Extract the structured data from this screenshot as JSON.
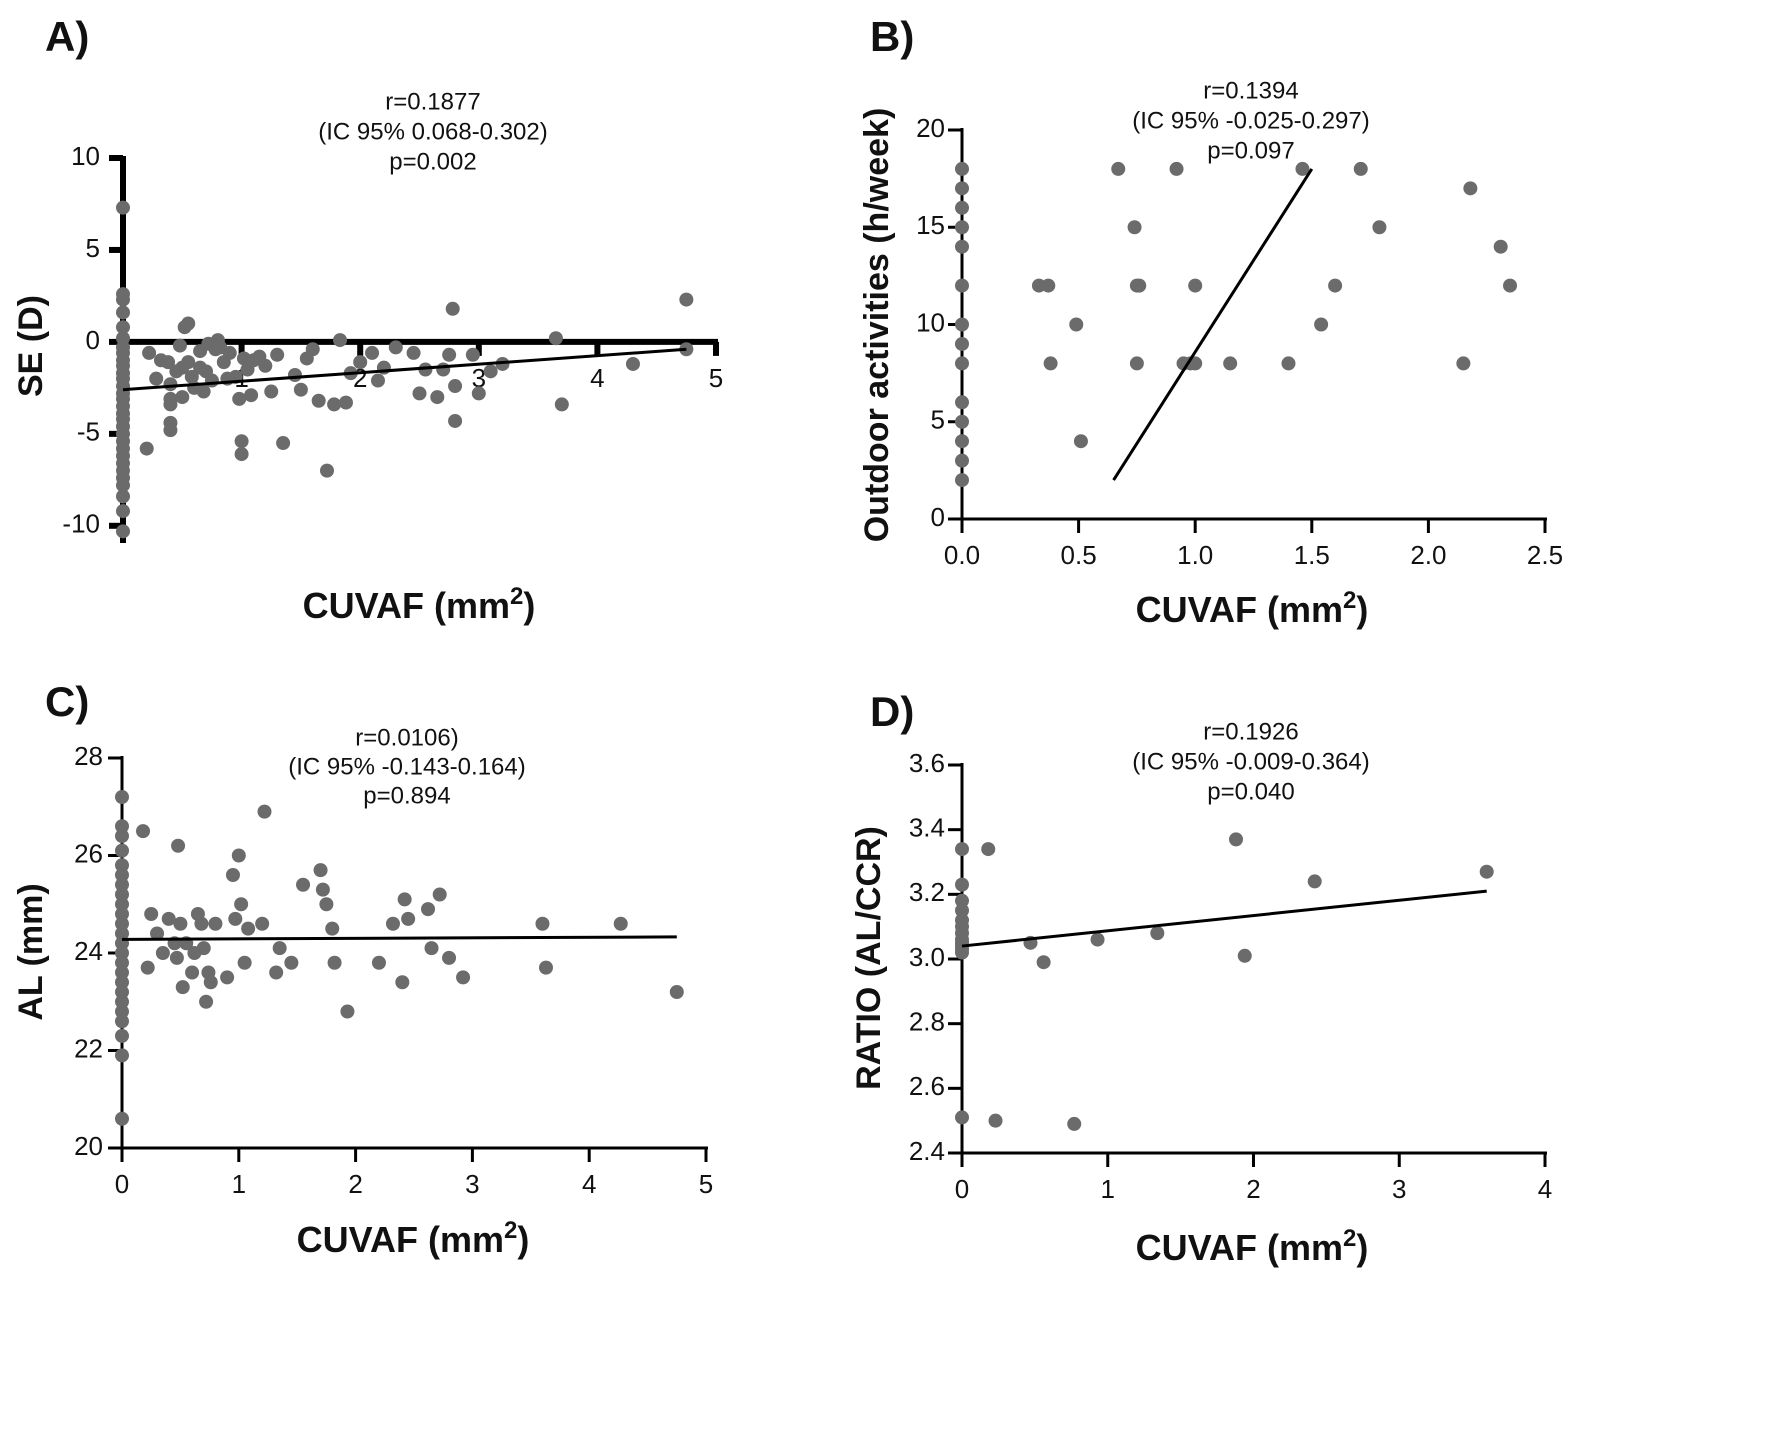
{
  "chart_data": [
    {
      "type": "scatter",
      "panel": "A)",
      "xlabel": "CUVAF (mm",
      "xlabel_sup": "2",
      "xlabel_end": ")",
      "ylabel": "SE (D)",
      "xlim": [
        0,
        5
      ],
      "ylim": [
        -10.5,
        10
      ],
      "x_ticks": [
        1,
        2,
        3,
        4,
        5
      ],
      "x_tick_labels": [
        "1",
        "2",
        "3",
        "4",
        "5"
      ],
      "y_ticks": [
        10,
        5,
        0,
        -5,
        -10
      ],
      "y_tick_labels": [
        "10",
        "5",
        "0",
        "-5",
        "-10"
      ],
      "x_axis_at": 0,
      "annotation": [
        "r=0.1877",
        "(IC 95% 0.068-0.302)",
        "p=0.002"
      ],
      "regression": {
        "x": [
          0,
          4.75
        ],
        "y": [
          -2.6,
          -0.4
        ]
      },
      "points": [
        [
          0,
          7.3
        ],
        [
          0,
          2.6
        ],
        [
          0,
          2.3
        ],
        [
          0,
          1.6
        ],
        [
          0,
          0.8
        ],
        [
          0,
          0.2
        ],
        [
          0,
          -0.3
        ],
        [
          0,
          -0.6
        ],
        [
          0,
          -1.0
        ],
        [
          0,
          -1.3
        ],
        [
          0,
          -1.7
        ],
        [
          0,
          -2.0
        ],
        [
          0,
          -2.4
        ],
        [
          0,
          -2.8
        ],
        [
          0,
          -3.1
        ],
        [
          0,
          -3.5
        ],
        [
          0,
          -3.9
        ],
        [
          0,
          -4.2
        ],
        [
          0,
          -4.6
        ],
        [
          0,
          -5.0
        ],
        [
          0,
          -5.4
        ],
        [
          0,
          -5.8
        ],
        [
          0,
          -6.2
        ],
        [
          0,
          -6.6
        ],
        [
          0,
          -7.0
        ],
        [
          0,
          -7.4
        ],
        [
          0,
          -7.8
        ],
        [
          0,
          -8.4
        ],
        [
          0,
          -9.2
        ],
        [
          0,
          -10.3
        ],
        [
          0.2,
          -5.8
        ],
        [
          0.22,
          -0.6
        ],
        [
          0.28,
          -2.0
        ],
        [
          0.32,
          -1.0
        ],
        [
          0.38,
          -1.1
        ],
        [
          0.4,
          -2.3
        ],
        [
          0.4,
          -3.1
        ],
        [
          0.4,
          -3.4
        ],
        [
          0.4,
          -4.4
        ],
        [
          0.4,
          -4.8
        ],
        [
          0.45,
          -1.6
        ],
        [
          0.48,
          -0.2
        ],
        [
          0.5,
          -1.4
        ],
        [
          0.5,
          -3.0
        ],
        [
          0.52,
          0.8
        ],
        [
          0.55,
          1.0
        ],
        [
          0.55,
          -1.1
        ],
        [
          0.58,
          -1.9
        ],
        [
          0.6,
          -2.5
        ],
        [
          0.65,
          -0.5
        ],
        [
          0.65,
          -1.4
        ],
        [
          0.68,
          -2.7
        ],
        [
          0.7,
          -1.6
        ],
        [
          0.72,
          -0.1
        ],
        [
          0.75,
          -2.1
        ],
        [
          0.78,
          -0.4
        ],
        [
          0.8,
          0.1
        ],
        [
          0.82,
          -0.3
        ],
        [
          0.85,
          -1.1
        ],
        [
          0.88,
          -2.0
        ],
        [
          0.9,
          -0.6
        ],
        [
          0.95,
          -1.9
        ],
        [
          0.98,
          -3.1
        ],
        [
          1.0,
          -5.4
        ],
        [
          1.0,
          -6.1
        ],
        [
          1.02,
          -0.9
        ],
        [
          1.05,
          -1.5
        ],
        [
          1.08,
          -2.9
        ],
        [
          1.1,
          -1.0
        ],
        [
          1.15,
          -0.8
        ],
        [
          1.2,
          -1.3
        ],
        [
          1.25,
          -2.7
        ],
        [
          1.3,
          -0.7
        ],
        [
          1.35,
          -5.5
        ],
        [
          1.45,
          -1.8
        ],
        [
          1.5,
          -2.6
        ],
        [
          1.55,
          -0.9
        ],
        [
          1.6,
          -0.4
        ],
        [
          1.65,
          -3.2
        ],
        [
          1.72,
          -7.0
        ],
        [
          1.78,
          -3.4
        ],
        [
          1.83,
          0.1
        ],
        [
          1.88,
          -3.3
        ],
        [
          1.92,
          -1.7
        ],
        [
          2.0,
          -1.1
        ],
        [
          2.1,
          -0.6
        ],
        [
          2.15,
          -2.1
        ],
        [
          2.2,
          -1.4
        ],
        [
          2.3,
          -0.3
        ],
        [
          2.45,
          -0.6
        ],
        [
          2.5,
          -2.8
        ],
        [
          2.55,
          -1.5
        ],
        [
          2.65,
          -3.0
        ],
        [
          2.7,
          -1.5
        ],
        [
          2.75,
          -0.7
        ],
        [
          2.78,
          1.8
        ],
        [
          2.8,
          -2.4
        ],
        [
          2.95,
          -0.7
        ],
        [
          3.0,
          -2.8
        ],
        [
          3.1,
          -1.6
        ],
        [
          3.2,
          -1.2
        ],
        [
          3.65,
          0.2
        ],
        [
          3.7,
          -3.4
        ],
        [
          4.3,
          -1.2
        ],
        [
          4.75,
          2.3
        ],
        [
          4.75,
          -0.4
        ],
        [
          2.8,
          -4.3
        ]
      ]
    },
    {
      "type": "scatter",
      "panel": "B)",
      "xlabel": "CUVAF (mm",
      "xlabel_sup": "2",
      "xlabel_end": ")",
      "ylabel": "Outdoor activities (h/week)",
      "xlim": [
        0,
        2.5
      ],
      "ylim": [
        0,
        20
      ],
      "x_ticks": [
        0,
        0.5,
        1.0,
        1.5,
        2.0,
        2.5
      ],
      "x_tick_labels": [
        "0.0",
        "0.5",
        "1.0",
        "1.5",
        "2.0",
        "2.5"
      ],
      "y_ticks": [
        0,
        5,
        10,
        15,
        20
      ],
      "y_tick_labels": [
        "0",
        "5",
        "10",
        "15",
        "20"
      ],
      "annotation": [
        "r=0.1394",
        "(IC 95% -0.025-0.297)",
        "p=0.097"
      ],
      "regression": {
        "x": [
          0.65,
          1.5
        ],
        "y": [
          2,
          18
        ]
      },
      "points": [
        [
          0,
          18
        ],
        [
          0,
          17
        ],
        [
          0,
          16
        ],
        [
          0,
          15
        ],
        [
          0,
          14
        ],
        [
          0,
          12
        ],
        [
          0,
          10
        ],
        [
          0,
          9
        ],
        [
          0,
          8
        ],
        [
          0,
          6
        ],
        [
          0,
          5
        ],
        [
          0,
          4
        ],
        [
          0,
          3
        ],
        [
          0,
          2
        ],
        [
          0.33,
          12
        ],
        [
          0.37,
          12
        ],
        [
          0.38,
          8
        ],
        [
          0.49,
          10
        ],
        [
          0.51,
          4
        ],
        [
          0.67,
          18
        ],
        [
          0.74,
          15
        ],
        [
          0.75,
          12
        ],
        [
          0.76,
          12
        ],
        [
          0.75,
          8
        ],
        [
          0.92,
          18
        ],
        [
          0.95,
          8
        ],
        [
          0.98,
          8
        ],
        [
          1.0,
          12
        ],
        [
          1.0,
          8
        ],
        [
          1.15,
          8
        ],
        [
          1.4,
          8
        ],
        [
          1.46,
          18
        ],
        [
          1.54,
          10
        ],
        [
          1.6,
          12
        ],
        [
          1.71,
          18
        ],
        [
          1.79,
          15
        ],
        [
          2.15,
          8
        ],
        [
          2.18,
          17
        ],
        [
          2.31,
          14
        ],
        [
          2.35,
          12
        ]
      ]
    },
    {
      "type": "scatter",
      "panel": "C)",
      "xlabel": "CUVAF (mm",
      "xlabel_sup": "2",
      "xlabel_end": ")",
      "ylabel": "AL (mm)",
      "xlim": [
        0,
        5
      ],
      "ylim": [
        20,
        28
      ],
      "x_ticks": [
        0,
        1,
        2,
        3,
        4,
        5
      ],
      "x_tick_labels": [
        "0",
        "1",
        "2",
        "3",
        "4",
        "5"
      ],
      "y_ticks": [
        20,
        22,
        24,
        26,
        28
      ],
      "y_tick_labels": [
        "20",
        "22",
        "24",
        "26",
        "28"
      ],
      "annotation": [
        "r=0.0106)",
        "(IC 95% -0.143-0.164)",
        "p=0.894"
      ],
      "regression": {
        "x": [
          0,
          4.75
        ],
        "y": [
          24.28,
          24.33
        ]
      },
      "points": [
        [
          0,
          27.2
        ],
        [
          0,
          26.6
        ],
        [
          0,
          26.4
        ],
        [
          0,
          26.1
        ],
        [
          0,
          25.8
        ],
        [
          0,
          25.6
        ],
        [
          0,
          25.4
        ],
        [
          0,
          25.2
        ],
        [
          0,
          25.0
        ],
        [
          0,
          24.8
        ],
        [
          0,
          24.6
        ],
        [
          0,
          24.4
        ],
        [
          0,
          24.2
        ],
        [
          0,
          24.0
        ],
        [
          0,
          23.8
        ],
        [
          0,
          23.6
        ],
        [
          0,
          23.4
        ],
        [
          0,
          23.2
        ],
        [
          0,
          23.0
        ],
        [
          0,
          22.8
        ],
        [
          0,
          22.6
        ],
        [
          0,
          22.3
        ],
        [
          0,
          21.9
        ],
        [
          0,
          20.6
        ],
        [
          0.18,
          26.5
        ],
        [
          0.22,
          23.7
        ],
        [
          0.25,
          24.8
        ],
        [
          0.3,
          24.4
        ],
        [
          0.35,
          24.0
        ],
        [
          0.4,
          24.7
        ],
        [
          0.45,
          24.2
        ],
        [
          0.47,
          23.9
        ],
        [
          0.48,
          26.2
        ],
        [
          0.5,
          24.6
        ],
        [
          0.52,
          23.3
        ],
        [
          0.55,
          24.2
        ],
        [
          0.6,
          23.6
        ],
        [
          0.62,
          24.0
        ],
        [
          0.65,
          24.8
        ],
        [
          0.68,
          24.6
        ],
        [
          0.7,
          24.1
        ],
        [
          0.72,
          23.0
        ],
        [
          0.74,
          23.6
        ],
        [
          0.76,
          23.4
        ],
        [
          0.8,
          24.6
        ],
        [
          0.9,
          23.5
        ],
        [
          0.95,
          25.6
        ],
        [
          0.97,
          24.7
        ],
        [
          1.0,
          26.0
        ],
        [
          1.02,
          25.0
        ],
        [
          1.05,
          23.8
        ],
        [
          1.08,
          24.5
        ],
        [
          1.2,
          24.6
        ],
        [
          1.22,
          26.9
        ],
        [
          1.32,
          23.6
        ],
        [
          1.35,
          24.1
        ],
        [
          1.45,
          23.8
        ],
        [
          1.55,
          25.4
        ],
        [
          1.7,
          25.7
        ],
        [
          1.72,
          25.3
        ],
        [
          1.75,
          25.0
        ],
        [
          1.8,
          24.5
        ],
        [
          1.82,
          23.8
        ],
        [
          1.93,
          22.8
        ],
        [
          2.2,
          23.8
        ],
        [
          2.32,
          24.6
        ],
        [
          2.4,
          23.4
        ],
        [
          2.42,
          25.1
        ],
        [
          2.45,
          24.7
        ],
        [
          2.62,
          24.9
        ],
        [
          2.65,
          24.1
        ],
        [
          2.72,
          25.2
        ],
        [
          2.8,
          23.9
        ],
        [
          2.92,
          23.5
        ],
        [
          3.6,
          24.6
        ],
        [
          3.63,
          23.7
        ],
        [
          4.27,
          24.6
        ],
        [
          4.75,
          23.2
        ]
      ]
    },
    {
      "type": "scatter",
      "panel": "D)",
      "xlabel": "CUVAF (mm",
      "xlabel_sup": "2",
      "xlabel_end": ")",
      "ylabel": "RATIO (AL/CCR)",
      "xlim": [
        0,
        4
      ],
      "ylim": [
        2.4,
        3.6
      ],
      "x_ticks": [
        0,
        1,
        2,
        3,
        4
      ],
      "x_tick_labels": [
        "0",
        "1",
        "2",
        "3",
        "4"
      ],
      "y_ticks": [
        2.4,
        2.6,
        2.8,
        3.0,
        3.2,
        3.4,
        3.6
      ],
      "y_tick_labels": [
        "2.4",
        "2.6",
        "2.8",
        "3.0",
        "3.2",
        "3.4",
        "3.6"
      ],
      "annotation": [
        "r=0.1926",
        "(IC 95% -0.009-0.364)",
        "p=0.040"
      ],
      "regression": {
        "x": [
          0,
          3.6
        ],
        "y": [
          3.04,
          3.21
        ]
      },
      "points": [
        [
          0,
          3.34
        ],
        [
          0,
          3.23
        ],
        [
          0,
          3.18
        ],
        [
          0,
          3.15
        ],
        [
          0,
          3.12
        ],
        [
          0,
          3.1
        ],
        [
          0,
          3.08
        ],
        [
          0,
          3.06
        ],
        [
          0,
          3.05
        ],
        [
          0,
          3.04
        ],
        [
          0,
          3.03
        ],
        [
          0,
          3.02
        ],
        [
          0,
          2.51
        ],
        [
          0.18,
          3.34
        ],
        [
          0.23,
          2.5
        ],
        [
          0.47,
          3.05
        ],
        [
          0.56,
          2.99
        ],
        [
          0.77,
          2.49
        ],
        [
          0.93,
          3.06
        ],
        [
          1.34,
          3.08
        ],
        [
          1.88,
          3.37
        ],
        [
          1.94,
          3.01
        ],
        [
          2.42,
          3.24
        ],
        [
          3.6,
          3.27
        ]
      ]
    }
  ]
}
